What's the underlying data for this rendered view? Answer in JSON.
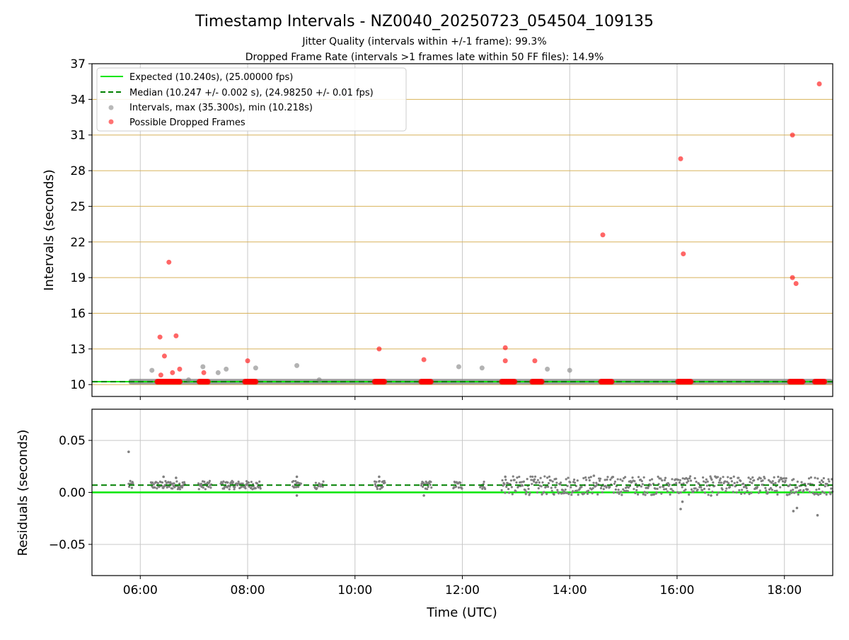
{
  "title": "Timestamp Intervals - NZ0040_20250723_054504_109135",
  "subtitle_1": "Jitter Quality (intervals within +/-1 frame): 99.3%",
  "subtitle_2": "Dropped Frame Rate (intervals >1 frames late within 50 FF files): 14.9%",
  "colors": {
    "expected": "#00e600",
    "median": "#008000",
    "intervals": "#808080",
    "dropped": "#ff0000",
    "hgrid_top": "#d8b25a",
    "grid": "#c8c8c8"
  },
  "chart_data": [
    {
      "type": "scatter",
      "name": "intervals",
      "ylabel": "Intervals (seconds)",
      "xlim": [
        "05:06",
        "18:54"
      ],
      "ylim": [
        9,
        37
      ],
      "yticks": [
        10,
        13,
        16,
        19,
        22,
        25,
        28,
        31,
        34,
        37
      ],
      "ytick_labels": [
        "10",
        "13",
        "16",
        "19",
        "22",
        "25",
        "28",
        "31",
        "34",
        "37"
      ],
      "grid": "on",
      "legend_position": "top-left",
      "legend": [
        "Expected (10.240s), (25.00000 fps)",
        "Median (10.247 +/- 0.002 s), (24.98250 +/- 0.01 fps)",
        "Intervals, max (35.300s), min (10.218s)",
        "Possible Dropped Frames"
      ],
      "expected_value": 10.24,
      "median_value": 10.247,
      "series": [
        {
          "name": "Intervals",
          "points": [
            [
              "06:13",
              11.2
            ],
            [
              "06:54",
              10.4
            ],
            [
              "07:10",
              11.5
            ],
            [
              "07:27",
              11.0
            ],
            [
              "07:36",
              11.3
            ],
            [
              "08:09",
              11.4
            ],
            [
              "08:55",
              11.6
            ],
            [
              "09:20",
              10.4
            ],
            [
              "11:56",
              11.5
            ],
            [
              "12:22",
              11.4
            ],
            [
              "13:35",
              11.3
            ],
            [
              "14:00",
              11.2
            ]
          ]
        },
        {
          "name": "Possible Dropped Frames",
          "points": [
            [
              "06:22",
              14.0
            ],
            [
              "06:23",
              10.8
            ],
            [
              "06:27",
              12.4
            ],
            [
              "06:32",
              20.3
            ],
            [
              "06:36",
              11.0
            ],
            [
              "06:40",
              14.1
            ],
            [
              "06:44",
              11.3
            ],
            [
              "07:11",
              11.0
            ],
            [
              "08:00",
              12.0
            ],
            [
              "10:27",
              13.0
            ],
            [
              "11:17",
              12.1
            ],
            [
              "12:48",
              13.1
            ],
            [
              "12:48",
              12.0
            ],
            [
              "13:21",
              12.0
            ],
            [
              "14:37",
              22.6
            ],
            [
              "16:04",
              29.0
            ],
            [
              "16:07",
              21.0
            ],
            [
              "18:09",
              31.0
            ],
            [
              "18:09",
              19.0
            ],
            [
              "18:13",
              18.5
            ],
            [
              "18:39",
              35.3
            ]
          ]
        }
      ],
      "dropped_clusters": [
        [
          "06:19",
          "06:45"
        ],
        [
          "07:06",
          "07:16"
        ],
        [
          "07:57",
          "08:09"
        ],
        [
          "10:22",
          "10:34"
        ],
        [
          "11:14",
          "11:26"
        ],
        [
          "12:44",
          "12:59"
        ],
        [
          "13:18",
          "13:29"
        ],
        [
          "14:35",
          "14:48"
        ],
        [
          "16:01",
          "16:16"
        ],
        [
          "18:06",
          "18:21"
        ],
        [
          "18:34",
          "18:46"
        ]
      ]
    },
    {
      "type": "scatter",
      "name": "residuals",
      "xlabel": "Time (UTC)",
      "ylabel": "Residuals (seconds)",
      "xlim": [
        "05:06",
        "18:54"
      ],
      "ylim": [
        -0.08,
        0.08
      ],
      "yticks": [
        -0.05,
        0.0,
        0.05
      ],
      "ytick_labels": [
        "−0.05",
        "0.00",
        "0.05"
      ],
      "xticks": [
        "06:00",
        "08:00",
        "10:00",
        "12:00",
        "14:00",
        "16:00",
        "18:00"
      ],
      "grid": "on",
      "expected_value": 0.0,
      "median_value": 0.007,
      "outliers": [
        [
          "05:47",
          0.039
        ],
        [
          "06:26",
          0.015
        ],
        [
          "06:40",
          0.014
        ],
        [
          "08:55",
          0.015
        ],
        [
          "08:55",
          -0.003
        ],
        [
          "10:27",
          0.015
        ],
        [
          "11:17",
          -0.003
        ],
        [
          "12:48",
          0.015
        ],
        [
          "14:27",
          0.016
        ],
        [
          "16:04",
          -0.016
        ],
        [
          "16:06",
          -0.009
        ],
        [
          "16:38",
          -0.003
        ],
        [
          "18:10",
          -0.018
        ],
        [
          "18:14",
          -0.015
        ],
        [
          "18:37",
          -0.022
        ]
      ]
    }
  ]
}
